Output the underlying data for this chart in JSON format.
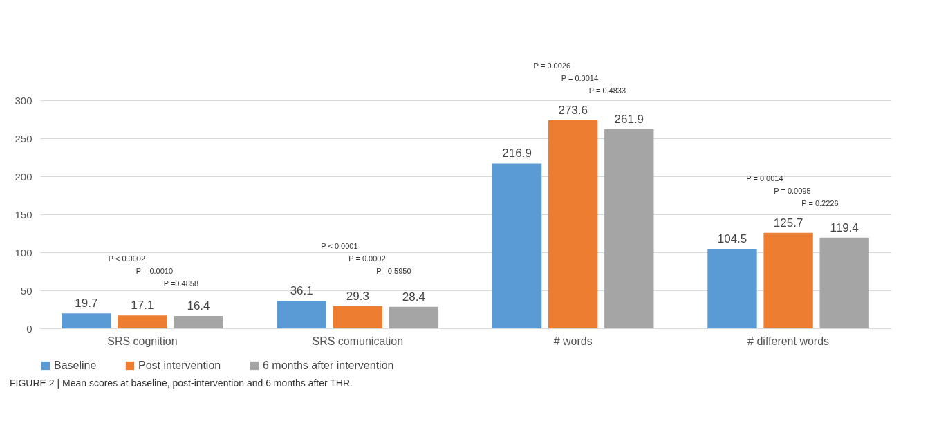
{
  "chart_data": {
    "type": "bar",
    "categories": [
      "SRS cognition",
      "SRS comunication",
      "# words",
      "# different words"
    ],
    "series": [
      {
        "name": "Baseline",
        "color": "#5b9bd5",
        "values": [
          19.7,
          36.1,
          216.9,
          104.5
        ]
      },
      {
        "name": "Post intervention",
        "color": "#ed7d31",
        "values": [
          17.1,
          29.3,
          273.6,
          125.7
        ]
      },
      {
        "name": "6 months after intervention",
        "color": "#a5a5a5",
        "values": [
          16.4,
          28.4,
          261.9,
          119.4
        ]
      }
    ],
    "ylim": [
      0,
      300
    ],
    "yticks": [
      0,
      50,
      100,
      150,
      200,
      250,
      300
    ],
    "grid": "y",
    "legend": "bottom",
    "data_labels": true,
    "annotations": [
      "P < 0.0002",
      "P = 0.0010",
      "P =0.4858",
      "P < 0.0001",
      "P = 0.0002",
      "P =0.5950",
      "P = 0.0026",
      "P = 0.0014",
      "P = 0.4833",
      "P = 0.0014",
      "P = 0.0095",
      "P = 0.2226",
      "FIGURE 2 | Mean scores at baseline, post-intervention and 6 months after THR."
    ]
  }
}
